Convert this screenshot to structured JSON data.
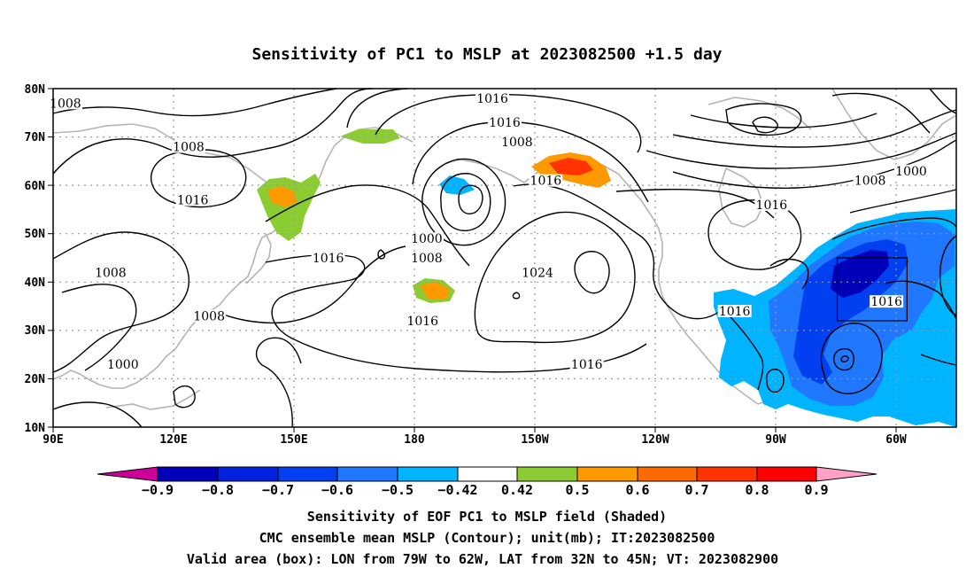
{
  "title": "Sensitivity of PC1 to MSLP at 2023082500 +1.5 day",
  "axes": {
    "lat_labels": [
      "80N",
      "70N",
      "60N",
      "50N",
      "40N",
      "30N",
      "20N",
      "10N"
    ],
    "lon_labels": [
      "90E",
      "120E",
      "150E",
      "180",
      "150W",
      "120W",
      "90W",
      "60W"
    ]
  },
  "contour_labels": [
    {
      "text": "1008",
      "lon": 93,
      "lat": 77
    },
    {
      "text": "1008",
      "lon": 123,
      "lat": 68
    },
    {
      "text": "1016",
      "lon": 124,
      "lat": 57
    },
    {
      "text": "1008",
      "lon": 104,
      "lat": 42
    },
    {
      "text": "1008",
      "lon": 128,
      "lat": 33
    },
    {
      "text": "1000",
      "lon": 107,
      "lat": 23
    },
    {
      "text": "1016",
      "lon": 157,
      "lat": 45
    },
    {
      "text": "1016",
      "lon": 180,
      "lat": 32
    },
    {
      "text": "1000",
      "lon": 181,
      "lat": 49
    },
    {
      "text": "1008",
      "lon": 181,
      "lat": 45
    },
    {
      "text": "1016",
      "lon": 197,
      "lat": 78
    },
    {
      "text": "1016",
      "lon": 200,
      "lat": 73
    },
    {
      "text": "1008",
      "lon": 203,
      "lat": 69
    },
    {
      "text": "1016",
      "lon": 210,
      "lat": 61
    },
    {
      "text": "1024",
      "lon": 208,
      "lat": 42
    },
    {
      "text": "1016",
      "lon": 220,
      "lat": 23
    },
    {
      "text": "1016",
      "lon": 256,
      "lat": 34
    },
    {
      "text": "1016",
      "lon": 265,
      "lat": 56
    },
    {
      "text": "1008",
      "lon": 289,
      "lat": 61
    },
    {
      "text": "1000",
      "lon": 299,
      "lat": 63
    },
    {
      "text": "1016",
      "lon": 293,
      "lat": 36
    }
  ],
  "colorbar": {
    "tick_labels": [
      "−0.9",
      "−0.8",
      "−0.7",
      "−0.6",
      "−0.5",
      "−0.42",
      "0.42",
      "0.5",
      "0.6",
      "0.7",
      "0.8",
      "0.9"
    ],
    "colors": [
      "#cc0099",
      "#0000b8",
      "#0022dd",
      "#0040f0",
      "#1f78ff",
      "#00b4ff",
      "#ffffff",
      "#8ccc33",
      "#ff9900",
      "#ff6a00",
      "#ff3300",
      "#ff0000",
      "#ffa0c8"
    ]
  },
  "valid_box": {
    "lon_min": -79,
    "lon_max": -62,
    "lat_min": 32,
    "lat_max": 45
  },
  "captions": [
    "Sensitivity of EOF PC1 to MSLP field (Shaded)",
    "CMC ensemble mean MSLP (Contour); unit(mb); IT:2023082500",
    "Valid area (box): LON from 79W to 62W, LAT from 32N to 45N; VT: 2023082900"
  ]
}
